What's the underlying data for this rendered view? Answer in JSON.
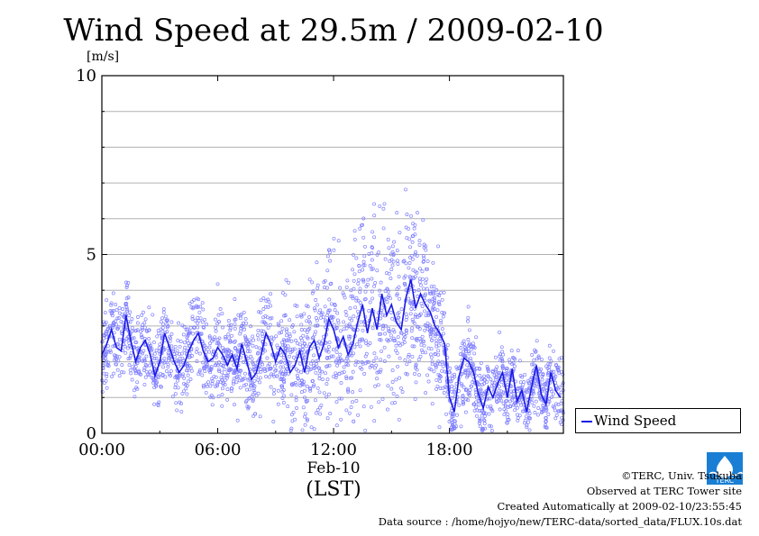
{
  "chart_data": {
    "type": "scatter",
    "title": "Wind Speed at 29.5m / 2009-02-10",
    "ylabel": "[m/s]",
    "xlabel": "Feb-10",
    "xlabel_sub": "(LST)",
    "x_unit": "hours (LST)",
    "ylim": [
      0,
      10
    ],
    "xlim": [
      0,
      23.9
    ],
    "yticks": [
      "0",
      "5",
      "10"
    ],
    "xticks": [
      {
        "x": 0,
        "label": "00:00"
      },
      {
        "x": 6,
        "label": "06:00"
      },
      {
        "x": 12,
        "label": "12:00"
      },
      {
        "x": 18,
        "label": "18:00"
      }
    ],
    "grid": "horizontal every 1 m/s",
    "legend_position": "bottom-right outside",
    "series": [
      {
        "name": "Wind Speed",
        "color": "#1a1ae6",
        "scatter_color": "#8080ff",
        "mean_x": [
          0,
          0.25,
          0.5,
          0.75,
          1,
          1.25,
          1.5,
          1.75,
          2,
          2.25,
          2.5,
          2.75,
          3,
          3.25,
          3.5,
          3.75,
          4,
          4.25,
          4.5,
          4.75,
          5,
          5.25,
          5.5,
          5.75,
          6,
          6.25,
          6.5,
          6.75,
          7,
          7.25,
          7.5,
          7.75,
          8,
          8.25,
          8.5,
          8.75,
          9,
          9.25,
          9.5,
          9.75,
          10,
          10.25,
          10.5,
          10.75,
          11,
          11.25,
          11.5,
          11.75,
          12,
          12.25,
          12.5,
          12.75,
          13,
          13.25,
          13.5,
          13.75,
          14,
          14.25,
          14.5,
          14.75,
          15,
          15.25,
          15.5,
          15.75,
          16,
          16.25,
          16.5,
          16.75,
          17,
          17.25,
          17.5,
          17.75,
          18,
          18.25,
          18.5,
          18.75,
          19,
          19.25,
          19.5,
          19.75,
          20,
          20.25,
          20.5,
          20.75,
          21,
          21.25,
          21.5,
          21.75,
          22,
          22.25,
          22.5,
          22.75,
          23,
          23.25,
          23.5,
          23.75
        ],
        "mean_y": [
          2.2,
          2.5,
          2.9,
          2.4,
          2.3,
          3.3,
          2.6,
          2.0,
          2.4,
          2.6,
          2.2,
          1.6,
          2.0,
          2.8,
          2.4,
          2.0,
          1.7,
          1.9,
          2.3,
          2.6,
          2.8,
          2.3,
          2.0,
          2.1,
          2.4,
          2.2,
          1.9,
          2.2,
          1.8,
          2.5,
          2.0,
          1.5,
          1.7,
          2.2,
          2.8,
          2.5,
          2.0,
          2.4,
          2.2,
          1.7,
          1.9,
          2.3,
          1.7,
          2.4,
          2.6,
          2.1,
          2.5,
          3.2,
          2.9,
          2.4,
          2.7,
          2.2,
          2.5,
          3.1,
          3.6,
          2.8,
          3.5,
          2.9,
          3.9,
          3.3,
          3.6,
          3.1,
          2.9,
          3.8,
          4.3,
          3.5,
          3.9,
          3.6,
          3.4,
          3.0,
          2.8,
          2.5,
          1.0,
          0.6,
          1.6,
          2.1,
          2.0,
          1.7,
          1.1,
          0.7,
          1.3,
          1.0,
          1.4,
          1.7,
          1.0,
          1.8,
          0.9,
          1.2,
          0.6,
          1.3,
          1.9,
          1.1,
          0.8,
          1.7,
          1.2,
          1.0
        ],
        "band_y": [
          0.7,
          0.7,
          0.7,
          0.7,
          0.7,
          0.8,
          0.7,
          0.7,
          0.7,
          0.7,
          0.7,
          0.6,
          0.7,
          0.8,
          0.7,
          0.7,
          0.7,
          0.7,
          0.8,
          0.8,
          0.9,
          0.8,
          0.7,
          0.8,
          0.8,
          0.8,
          0.8,
          0.8,
          0.8,
          0.9,
          0.9,
          0.8,
          0.8,
          0.9,
          1.0,
          1.0,
          1.0,
          1.1,
          1.1,
          1.1,
          1.2,
          1.2,
          1.2,
          1.3,
          1.3,
          1.3,
          1.4,
          1.5,
          1.5,
          1.5,
          1.5,
          1.5,
          1.6,
          1.7,
          1.8,
          1.7,
          1.8,
          1.8,
          1.9,
          1.8,
          1.8,
          1.7,
          1.7,
          1.7,
          1.8,
          1.6,
          1.6,
          1.5,
          1.4,
          1.2,
          1.1,
          1.0,
          0.7,
          0.6,
          0.7,
          0.8,
          0.7,
          0.7,
          0.6,
          0.6,
          0.6,
          0.6,
          0.6,
          0.7,
          0.6,
          0.7,
          0.6,
          0.6,
          0.6,
          0.6,
          0.7,
          0.6,
          0.6,
          0.7,
          0.6,
          0.6
        ]
      }
    ]
  },
  "credits": {
    "line1": "©TERC, Univ. Tsukuba",
    "line2": "Observed at TERC Tower site",
    "line3": "Created Automatically at 2009-02-10/23:55:45",
    "line4": "Data source : /home/hojyo/new/TERC-data/sorted_data/FLUX.10s.dat"
  },
  "logo": {
    "text": "TERC",
    "color": "#1a7fd4",
    "icon": "terc-logo-icon"
  }
}
